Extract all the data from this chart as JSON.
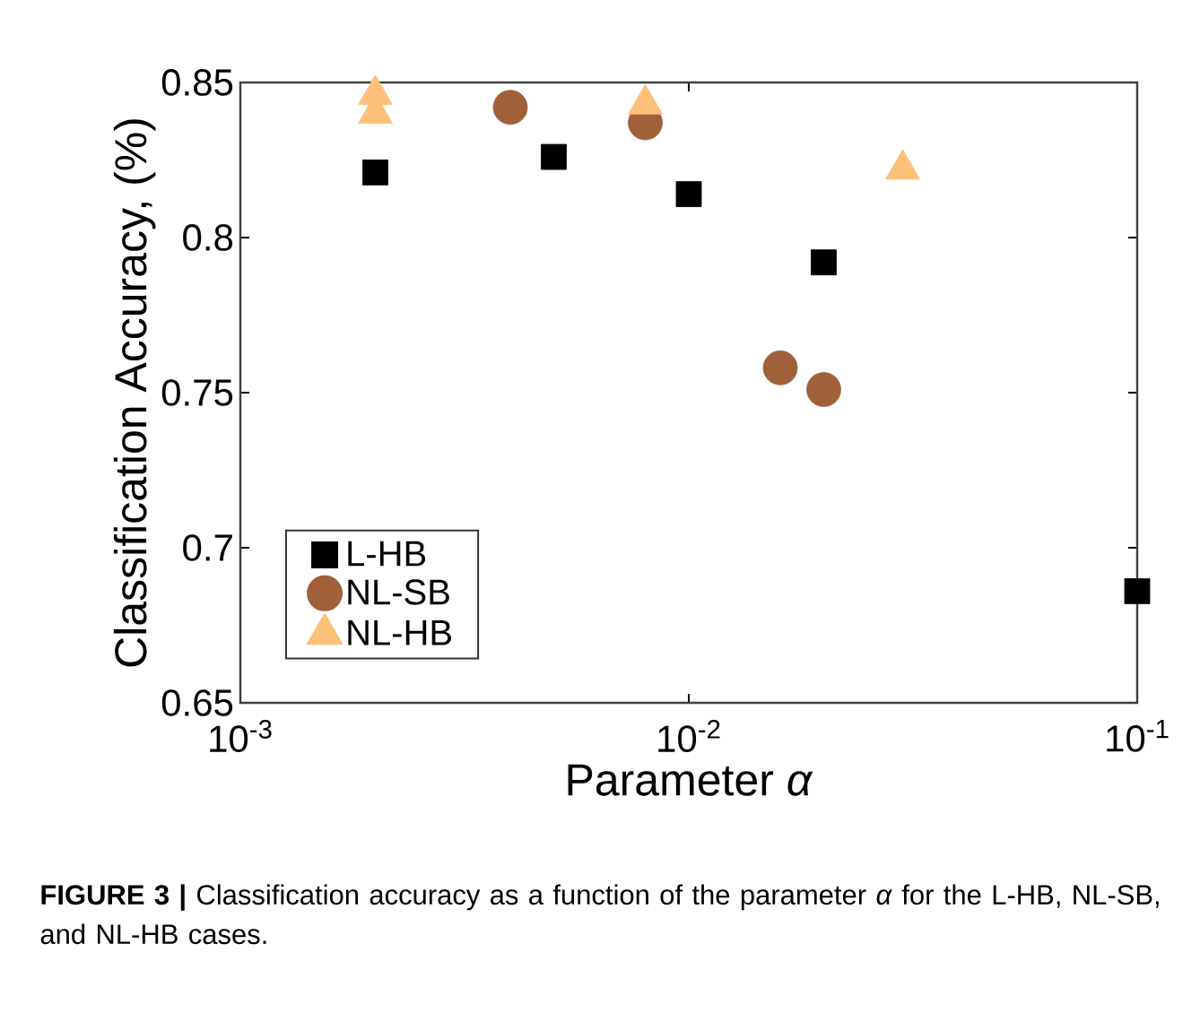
{
  "chart_data": {
    "type": "scatter",
    "xlabel": "Parameter *α*",
    "ylabel": "Classification Accuracy, (%)",
    "log": "x",
    "xlim": [
      0.001,
      0.1
    ],
    "xticks": [
      {
        "value": 0.001,
        "label": "10$^{-3}$"
      },
      {
        "value": 0.01,
        "label": "10$^{-2}$"
      },
      {
        "value": 0.1,
        "label": "10$^{-1}$"
      }
    ],
    "ylim": [
      0.65,
      0.85
    ],
    "yticks": [
      0.65,
      0.7,
      0.75,
      0.8,
      0.85
    ],
    "grid": false,
    "legend": "bottom left",
    "series": [
      {
        "name": "L-HB",
        "color": "#000000",
        "marker": "square",
        "x": [
          0.002,
          0.005,
          0.01,
          0.02,
          0.1
        ],
        "values": [
          0.821,
          0.826,
          0.814,
          0.792,
          0.686
        ]
      },
      {
        "name": "NL-SB",
        "color": "#a0603a",
        "marker": "circle",
        "x": [
          0.004,
          0.008,
          0.016,
          0.02
        ],
        "values": [
          0.842,
          0.837,
          0.758,
          0.751
        ]
      },
      {
        "name": "NL-HB",
        "color": "#fdc07a",
        "marker": "triangle",
        "x": [
          0.002,
          0.002,
          0.008,
          0.03
        ],
        "values": [
          0.846,
          0.84,
          0.843,
          0.822
        ]
      }
    ],
    "annotations": [
      "**FIGURE 3 |** Classification accuracy as a function of the parameter *α* for the L-HB, NL-SB, and NL-HB cases."
    ]
  }
}
